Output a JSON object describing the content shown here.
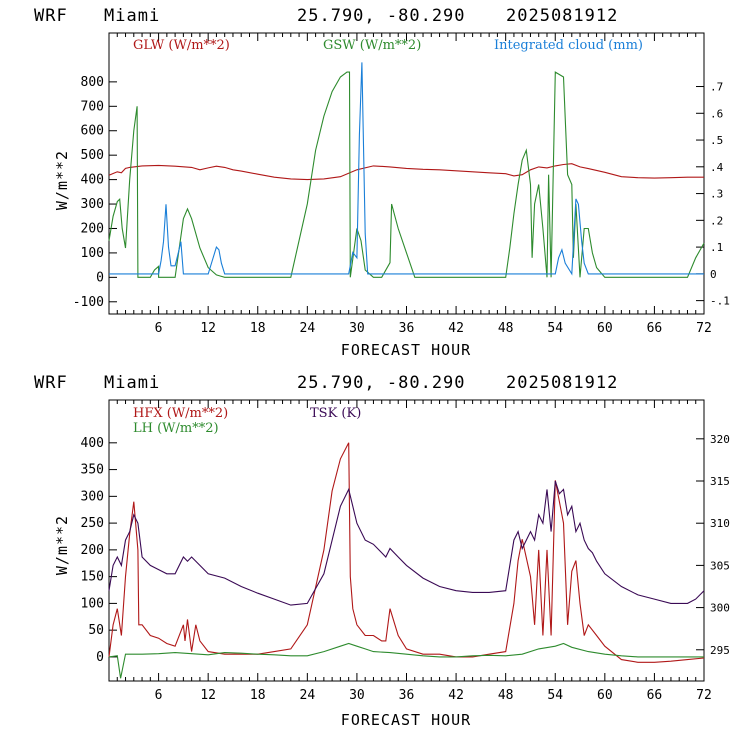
{
  "chart_data": [
    {
      "type": "line",
      "header": {
        "model": "WRF",
        "location": "Miami",
        "coords": "25.790, -80.290",
        "run": "2025081912"
      },
      "xlabel": "FORECAST HOUR",
      "ylabel": "W/m**2",
      "xlim": [
        0,
        72
      ],
      "xticks": [
        6,
        12,
        18,
        24,
        30,
        36,
        42,
        48,
        54,
        60,
        66,
        72
      ],
      "ylim": [
        -150,
        1000
      ],
      "yticks": [
        -100,
        0,
        100,
        200,
        300,
        400,
        500,
        600,
        700,
        800
      ],
      "y2lim": [
        -0.15,
        0.9
      ],
      "y2ticks": [
        -0.1,
        0,
        0.1,
        0.2,
        0.3,
        0.4,
        0.5,
        0.6,
        0.7
      ],
      "y2ticklabels": [
        "-.1",
        "0",
        ".1",
        ".2",
        ".3",
        ".4",
        ".5",
        ".6",
        ".7"
      ],
      "legend_placement": "top",
      "series": [
        {
          "name": "GLW (W/m**2)",
          "color": "#b01818",
          "axis": "left",
          "x": [
            0,
            0.5,
            1,
            1.5,
            2,
            2.5,
            3,
            4,
            6,
            8,
            10,
            11,
            12,
            13,
            14,
            15,
            16,
            18,
            20,
            22,
            24,
            26,
            28,
            30,
            32,
            34,
            36,
            38,
            40,
            42,
            44,
            46,
            48,
            49,
            50,
            51,
            52,
            53,
            54,
            55,
            56,
            57,
            58,
            60,
            62,
            64,
            66,
            68,
            70,
            72
          ],
          "y": [
            418,
            425,
            432,
            428,
            446,
            450,
            452,
            456,
            458,
            455,
            450,
            440,
            448,
            455,
            450,
            440,
            435,
            422,
            410,
            403,
            400,
            403,
            412,
            440,
            456,
            452,
            446,
            442,
            440,
            436,
            432,
            428,
            424,
            415,
            420,
            440,
            452,
            448,
            456,
            462,
            465,
            452,
            445,
            430,
            412,
            408,
            406,
            408,
            410,
            410
          ]
        },
        {
          "name": "GSW (W/m**2)",
          "color": "#2e8b2e",
          "axis": "left",
          "x": [
            0,
            0.5,
            1,
            1.3,
            1.6,
            2,
            2.5,
            3,
            3.4,
            3.5,
            5,
            5.5,
            6,
            6,
            8,
            9,
            9.5,
            10,
            11,
            12,
            13,
            13.5,
            14,
            22,
            24,
            25,
            26,
            27,
            28,
            28.8,
            29.1,
            29.2,
            30,
            30.5,
            31,
            32,
            33,
            34,
            34.2,
            35,
            36,
            37,
            48,
            48.5,
            49,
            49.5,
            50,
            50.5,
            51,
            51.2,
            51.5,
            52,
            52.5,
            53,
            53.2,
            53.5,
            54,
            55,
            55.5,
            56,
            56.2,
            56.5,
            57,
            57.5,
            58,
            58.5,
            59,
            60,
            70,
            71,
            72
          ],
          "y": [
            150,
            250,
            310,
            320,
            200,
            120,
            400,
            600,
            700,
            0,
            0,
            30,
            45,
            0,
            0,
            240,
            280,
            240,
            120,
            40,
            10,
            5,
            0,
            0,
            300,
            520,
            660,
            760,
            820,
            840,
            840,
            0,
            200,
            150,
            30,
            0,
            0,
            60,
            300,
            200,
            100,
            0,
            0,
            120,
            260,
            380,
            480,
            520,
            380,
            80,
            300,
            380,
            200,
            0,
            420,
            0,
            840,
            820,
            420,
            380,
            80,
            300,
            0,
            200,
            200,
            100,
            40,
            0,
            0,
            80,
            140
          ]
        },
        {
          "name": "Integrated cloud (mm)",
          "color": "#1a7fd8",
          "axis": "right",
          "x": [
            0,
            6,
            6.3,
            6.6,
            6.9,
            7.2,
            7.5,
            8,
            8.4,
            8.7,
            9,
            12,
            12.5,
            13,
            13.3,
            13.6,
            14,
            29,
            29.5,
            30,
            30.3,
            30.6,
            31,
            31.3,
            32,
            54,
            54.4,
            54.8,
            55.2,
            56,
            56.5,
            56.8,
            57.2,
            57.5,
            58,
            72
          ],
          "y": [
            0,
            0,
            0.05,
            0.12,
            0.26,
            0.1,
            0.03,
            0.03,
            0.08,
            0.12,
            0,
            0,
            0.05,
            0.1,
            0.09,
            0.04,
            0,
            0,
            0.08,
            0.06,
            0.52,
            0.79,
            0.15,
            0,
            0,
            0,
            0.06,
            0.09,
            0.04,
            0,
            0.28,
            0.26,
            0.12,
            0.04,
            0,
            0
          ]
        }
      ]
    },
    {
      "type": "line",
      "header": {
        "model": "WRF",
        "location": "Miami",
        "coords": "25.790, -80.290",
        "run": "2025081912"
      },
      "xlabel": "FORECAST HOUR",
      "ylabel": "W/m**2",
      "xlim": [
        0,
        72
      ],
      "xticks": [
        6,
        12,
        18,
        24,
        30,
        36,
        42,
        48,
        54,
        60,
        66,
        72
      ],
      "ylim": [
        -45,
        480
      ],
      "yticks": [
        0,
        50,
        100,
        150,
        200,
        250,
        300,
        350,
        400
      ],
      "y2lim": [
        291.3,
        324.6
      ],
      "y2ticks": [
        295,
        300,
        305,
        310,
        315,
        320
      ],
      "y2ticklabels": [
        "295",
        "300",
        "305",
        "310",
        "315",
        "320"
      ],
      "legend_placement": "top-left",
      "series": [
        {
          "name": "HFX (W/m**2)",
          "color": "#b01818",
          "axis": "left",
          "x": [
            0,
            0.5,
            1,
            1.5,
            2,
            2.5,
            3,
            3.5,
            3.6,
            4,
            5,
            6,
            7,
            8,
            9,
            9.2,
            9.5,
            10,
            10.5,
            11,
            12,
            14,
            16,
            18,
            20,
            22,
            24,
            26,
            27,
            28,
            29,
            29.2,
            29.5,
            30,
            31,
            32,
            33,
            33.5,
            34,
            35,
            36,
            38,
            40,
            42,
            44,
            46,
            48,
            49,
            49.5,
            50,
            51,
            51.5,
            52,
            52.5,
            53,
            53.5,
            54,
            55,
            55.5,
            56,
            56.5,
            57,
            57.5,
            58,
            59,
            60,
            62,
            64,
            66,
            68,
            70,
            72
          ],
          "y": [
            0,
            60,
            90,
            40,
            150,
            230,
            290,
            200,
            60,
            60,
            40,
            35,
            25,
            20,
            60,
            30,
            70,
            10,
            60,
            30,
            10,
            5,
            5,
            5,
            10,
            15,
            60,
            200,
            310,
            370,
            400,
            150,
            90,
            60,
            40,
            40,
            30,
            30,
            90,
            40,
            15,
            5,
            5,
            0,
            0,
            5,
            10,
            100,
            180,
            220,
            150,
            60,
            200,
            40,
            200,
            40,
            330,
            250,
            60,
            160,
            180,
            100,
            40,
            60,
            40,
            20,
            -5,
            -10,
            -10,
            -8,
            -5,
            -2
          ]
        },
        {
          "name": "LH (W/m**2)",
          "color": "#2e8b2e",
          "axis": "left",
          "x": [
            0,
            1,
            1.4,
            2,
            4,
            6,
            8,
            10,
            12,
            14,
            16,
            18,
            20,
            22,
            24,
            26,
            28,
            29,
            30,
            31,
            32,
            34,
            36,
            38,
            40,
            42,
            44,
            46,
            48,
            50,
            52,
            54,
            55,
            56,
            58,
            60,
            62,
            64,
            66,
            68,
            70,
            72
          ],
          "y": [
            0,
            2,
            -40,
            5,
            5,
            6,
            8,
            6,
            4,
            8,
            7,
            5,
            4,
            2,
            2,
            10,
            20,
            25,
            20,
            15,
            10,
            8,
            5,
            2,
            0,
            0,
            2,
            3,
            2,
            5,
            15,
            20,
            25,
            18,
            10,
            5,
            2,
            0,
            0,
            0,
            0,
            0
          ]
        },
        {
          "name": "TSK (K)",
          "color": "#3a0a55",
          "axis": "right",
          "x": [
            0,
            0.5,
            1,
            1.5,
            2,
            2.5,
            3,
            3.5,
            4,
            5,
            6,
            7,
            8,
            9,
            9.5,
            10,
            11,
            12,
            14,
            16,
            18,
            20,
            22,
            24,
            26,
            28,
            29,
            29.5,
            30,
            31,
            32,
            33,
            33.5,
            34,
            35,
            36,
            38,
            40,
            42,
            44,
            46,
            48,
            49,
            49.5,
            50,
            51,
            51.5,
            52,
            52.5,
            53,
            53.5,
            54,
            54.5,
            55,
            55.5,
            56,
            56.5,
            57,
            57.5,
            58,
            58.5,
            59,
            60,
            62,
            64,
            66,
            68,
            70,
            71,
            72
          ],
          "y": [
            302,
            305,
            306,
            305,
            308,
            309,
            311,
            310,
            306,
            305,
            304.5,
            304,
            304,
            306,
            305.5,
            306,
            305,
            304,
            303.5,
            302.5,
            301.7,
            301,
            300.3,
            300.5,
            304,
            312,
            314,
            312,
            310,
            308,
            307.5,
            306.5,
            306,
            307,
            306,
            305,
            303.5,
            302.5,
            302,
            301.8,
            301.8,
            302,
            308,
            309,
            307,
            309,
            308,
            311,
            310,
            314,
            309,
            315,
            313.5,
            314,
            311,
            312,
            309,
            310,
            308,
            307,
            306.5,
            305.5,
            304,
            302.5,
            301.5,
            301,
            300.5,
            300.5,
            301,
            302
          ]
        }
      ]
    }
  ]
}
